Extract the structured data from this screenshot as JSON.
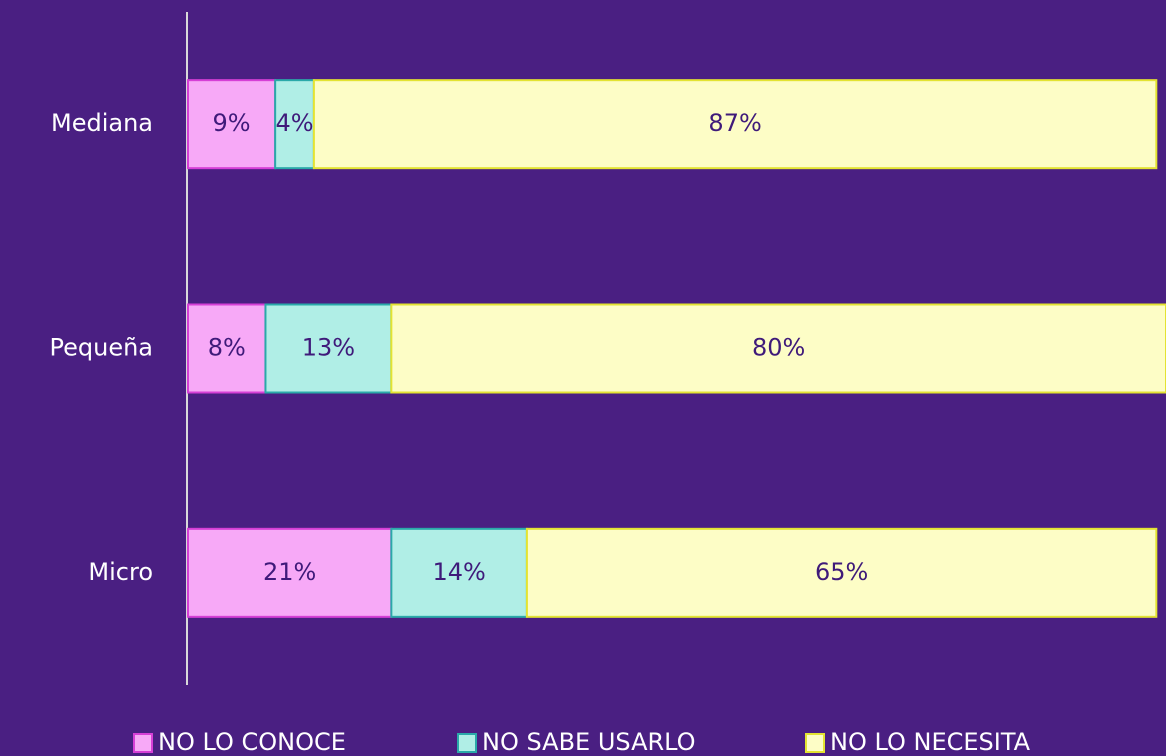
{
  "chart_data": {
    "type": "stacked_barh",
    "categories": [
      "Mediana",
      "Pequeña",
      "Micro"
    ],
    "series": [
      {
        "name": "NO LO CONOCE",
        "color": "#f7a9f7",
        "edge": "#d63fd6",
        "values": [
          9,
          8,
          21
        ],
        "value_labels": [
          "9%",
          "8%",
          "21%"
        ]
      },
      {
        "name": "NO SABE USARLO",
        "color": "#b0eee6",
        "edge": "#2aa9a9",
        "values": [
          4,
          13,
          14
        ],
        "value_labels": [
          "4%",
          "13%",
          "14%"
        ]
      },
      {
        "name": "NO LO NECESITA",
        "color": "#fdfdc6",
        "edge": "#e3e332",
        "values": [
          87,
          80,
          65
        ],
        "value_labels": [
          "87%",
          "80%",
          "65%"
        ]
      }
    ],
    "legend": "bottom"
  }
}
